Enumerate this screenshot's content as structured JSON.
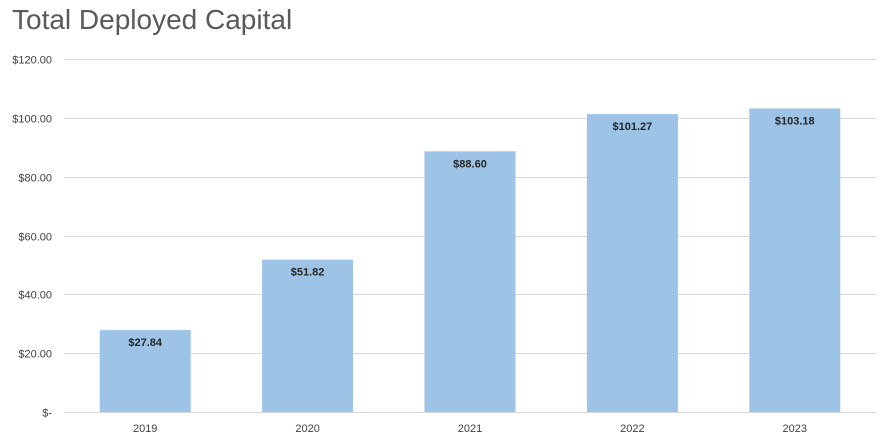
{
  "chart_data": {
    "type": "bar",
    "title": "Total Deployed Capital",
    "categories": [
      "2019",
      "2020",
      "2021",
      "2022",
      "2023"
    ],
    "values": [
      27.84,
      51.82,
      88.6,
      101.27,
      103.18
    ],
    "data_labels": [
      "$27.84",
      "$51.82",
      "$88.60",
      "$101.27",
      "$103.18"
    ],
    "ylim": [
      0,
      120
    ],
    "yticks": [
      0,
      20,
      40,
      60,
      80,
      100,
      120
    ],
    "ytick_labels": [
      "$-",
      "$20.00",
      "$40.00",
      "$60.00",
      "$80.00",
      "$100.00",
      "$120.00"
    ],
    "xlabel": "",
    "ylabel": "",
    "grid": true,
    "legend": "none",
    "colors": {
      "bar": "#9DC3E6",
      "grid": "#D9D9D9",
      "title": "#595959",
      "tick_text": "#404040",
      "label_text": "#262626"
    }
  }
}
